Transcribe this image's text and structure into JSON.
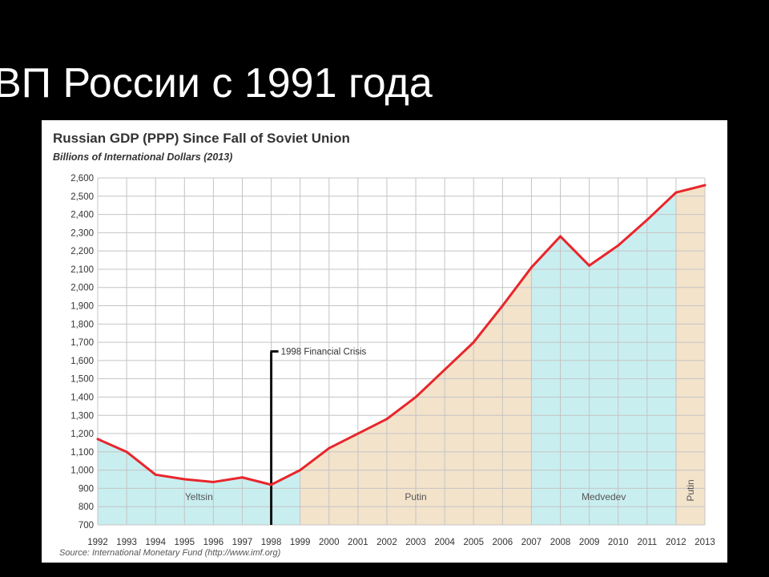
{
  "slide": {
    "title": "ВП России с 1991 года"
  },
  "overlay_text": [
    "•     ",
    "•     ",
    "•     ",
    "•     ",
    "•     "
  ],
  "chart_data": {
    "type": "line",
    "title": "Russian GDP (PPP) Since Fall of Soviet Union",
    "subtitle": "Billions of International Dollars (2013)",
    "source": "Source: International Monetary Fund (http://www.imf.org)",
    "x": [
      1992,
      1993,
      1994,
      1995,
      1996,
      1997,
      1998,
      1999,
      2000,
      2001,
      2002,
      2003,
      2004,
      2005,
      2006,
      2007,
      2008,
      2009,
      2010,
      2011,
      2012,
      2013
    ],
    "x_tick_labels": [
      "1992",
      "1993",
      "1994",
      "1995",
      "1996",
      "1997",
      "1998",
      "1999",
      "2000",
      "2001",
      "2002",
      "2003",
      "2004",
      "2005",
      "2006",
      "2007",
      "2008",
      "2009",
      "2010",
      "2011",
      "2012",
      "2013"
    ],
    "series": [
      {
        "values": [
          1170,
          1100,
          975,
          950,
          935,
          960,
          920,
          1000,
          1120,
          1200,
          1280,
          1400,
          1550,
          1700,
          1900,
          2110,
          2280,
          2120,
          2230,
          2370,
          2520,
          2560
        ]
      }
    ],
    "ylim": [
      700,
      2600
    ],
    "y_ticks": [
      700,
      800,
      900,
      1000,
      1100,
      1200,
      1300,
      1400,
      1500,
      1600,
      1700,
      1800,
      1900,
      2000,
      2100,
      2200,
      2300,
      2400,
      2500,
      2600
    ],
    "y_tick_labels": [
      "700",
      "800",
      "900",
      "1,000",
      "1,100",
      "1,200",
      "1,300",
      "1,400",
      "1,500",
      "1,600",
      "1,700",
      "1,800",
      "1,900",
      "2,000",
      "2,100",
      "2,200",
      "2,300",
      "2,400",
      "2,500",
      "2,600"
    ],
    "grid": true,
    "line_color": "#e8262b",
    "regions": [
      {
        "label": "Yeltsin",
        "start": 1992,
        "end": 1999,
        "color": "#c9eef0"
      },
      {
        "label": "Putin",
        "start": 1999,
        "end": 2007,
        "color": "#f3e3cb"
      },
      {
        "label": "Medvedev",
        "start": 2007,
        "end": 2012,
        "color": "#c9eef0"
      },
      {
        "label": "Putin",
        "start": 2012,
        "end": 2013,
        "color": "#f3e3cb",
        "vertical": true
      }
    ],
    "annotation": {
      "label": "1998 Financial Crisis",
      "x": 1998,
      "y": 1650
    }
  }
}
